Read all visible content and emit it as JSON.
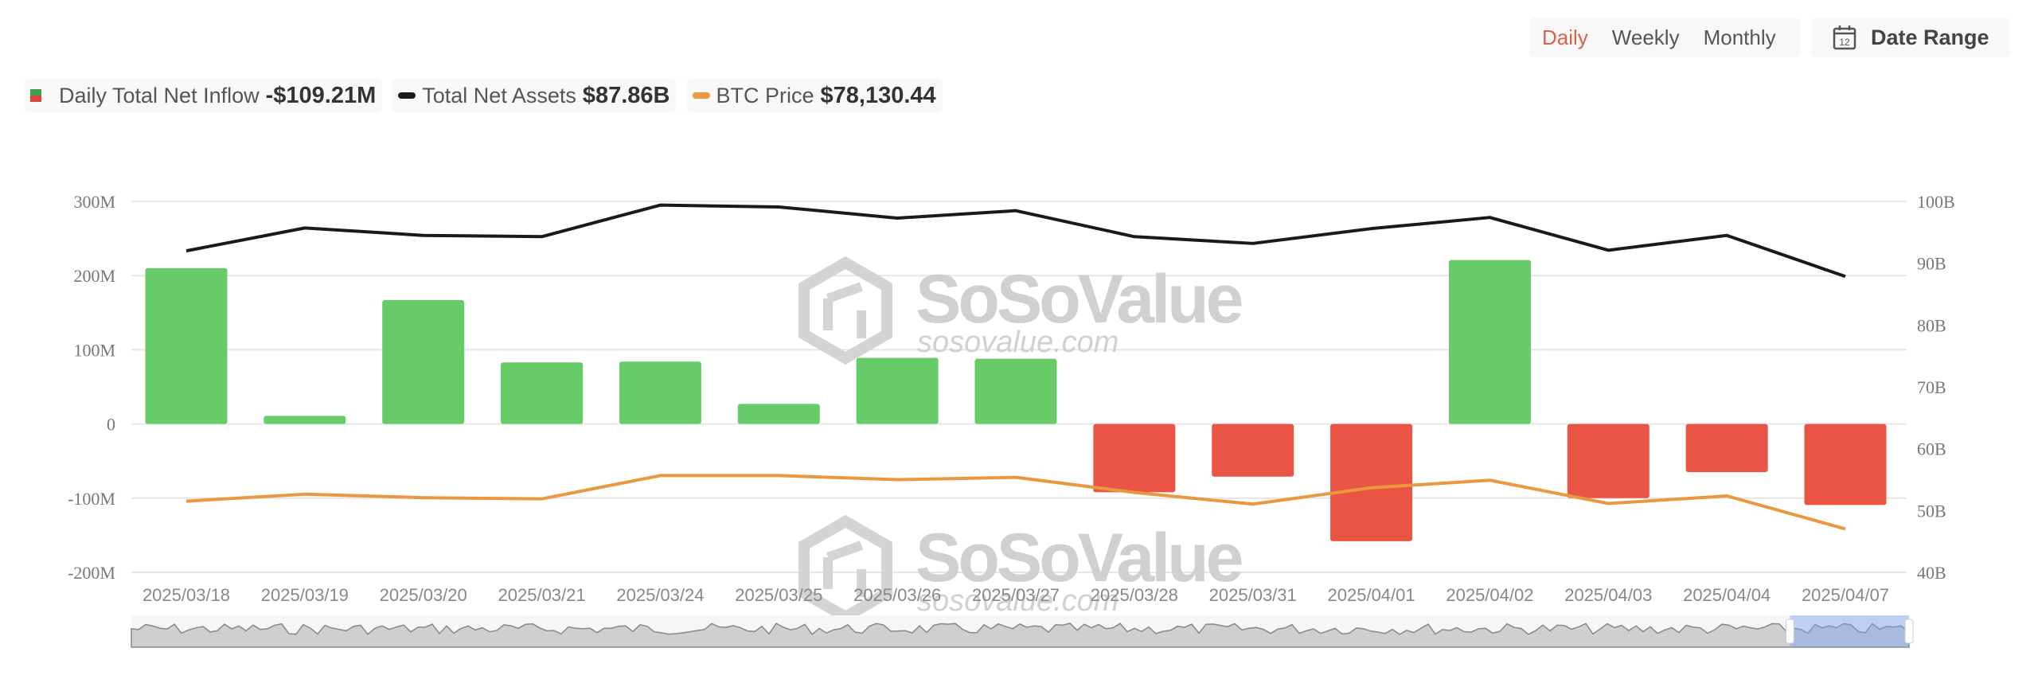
{
  "controls": {
    "periods": [
      {
        "label": "Daily",
        "active": true
      },
      {
        "label": "Weekly",
        "active": false
      },
      {
        "label": "Monthly",
        "active": false
      }
    ],
    "date_range_label": "Date Range",
    "date_range_icon": "calendar-icon",
    "calendar_day": "12"
  },
  "legend": [
    {
      "label": "Daily Total Net Inflow",
      "value": "-$109.21M",
      "swatch": "bar",
      "colors": [
        "#3fa14e",
        "#d9473a"
      ]
    },
    {
      "label": "Total Net Assets",
      "value": "$87.86B",
      "swatch": "line",
      "color": "#1a1a1a"
    },
    {
      "label": "BTC Price",
      "value": "$78,130.44",
      "swatch": "line",
      "color": "#e8993f"
    }
  ],
  "watermark": {
    "brand": "SoSoValue",
    "url": "sosovalue.com"
  },
  "colors": {
    "positive": "#67cc68",
    "negative": "#e95444",
    "assets_line": "#1a1a1a",
    "btc_line": "#e8993f",
    "grid": "#e6e6e6"
  },
  "chart_data": {
    "type": "bar",
    "title": "",
    "categories": [
      "2025/03/18",
      "2025/03/19",
      "2025/03/20",
      "2025/03/21",
      "2025/03/24",
      "2025/03/25",
      "2025/03/26",
      "2025/03/27",
      "2025/03/28",
      "2025/03/31",
      "2025/04/01",
      "2025/04/02",
      "2025/04/03",
      "2025/04/04",
      "2025/04/07"
    ],
    "series": [
      {
        "name": "Daily Total Net Inflow",
        "type": "bar",
        "axis": "left",
        "unit": "M USD",
        "values": [
          210,
          11,
          167,
          83,
          84,
          27,
          89,
          88,
          -92,
          -71,
          -158,
          221,
          -100,
          -65,
          -109.21
        ]
      },
      {
        "name": "Total Net Assets",
        "type": "line",
        "axis": "right",
        "unit": "B USD",
        "values": [
          92.0,
          95.7,
          94.5,
          94.3,
          99.4,
          99.1,
          97.3,
          98.5,
          94.3,
          93.2,
          95.6,
          97.4,
          92.1,
          94.5,
          87.86
        ]
      },
      {
        "name": "BTC Price",
        "type": "line",
        "axis": "hidden",
        "unit": "USD",
        "values": [
          82900,
          84100,
          83500,
          83300,
          87300,
          87300,
          86600,
          87000,
          84400,
          82400,
          85200,
          86500,
          82500,
          83800,
          78130.44
        ]
      }
    ],
    "left_axis": {
      "ticks": [
        "300M",
        "200M",
        "100M",
        "0",
        "-100M",
        "-200M"
      ],
      "ylim": [
        -200,
        300
      ]
    },
    "right_axis": {
      "ticks": [
        "100B",
        "90B",
        "80B",
        "70B",
        "60B",
        "50B",
        "40B"
      ],
      "ylim": [
        40,
        100
      ]
    },
    "xlabel": "",
    "ylabel": "",
    "grid": true,
    "legend_position": "top-left"
  },
  "navigator": {
    "selected_start_pct": 93.3,
    "selected_end_pct": 100
  }
}
